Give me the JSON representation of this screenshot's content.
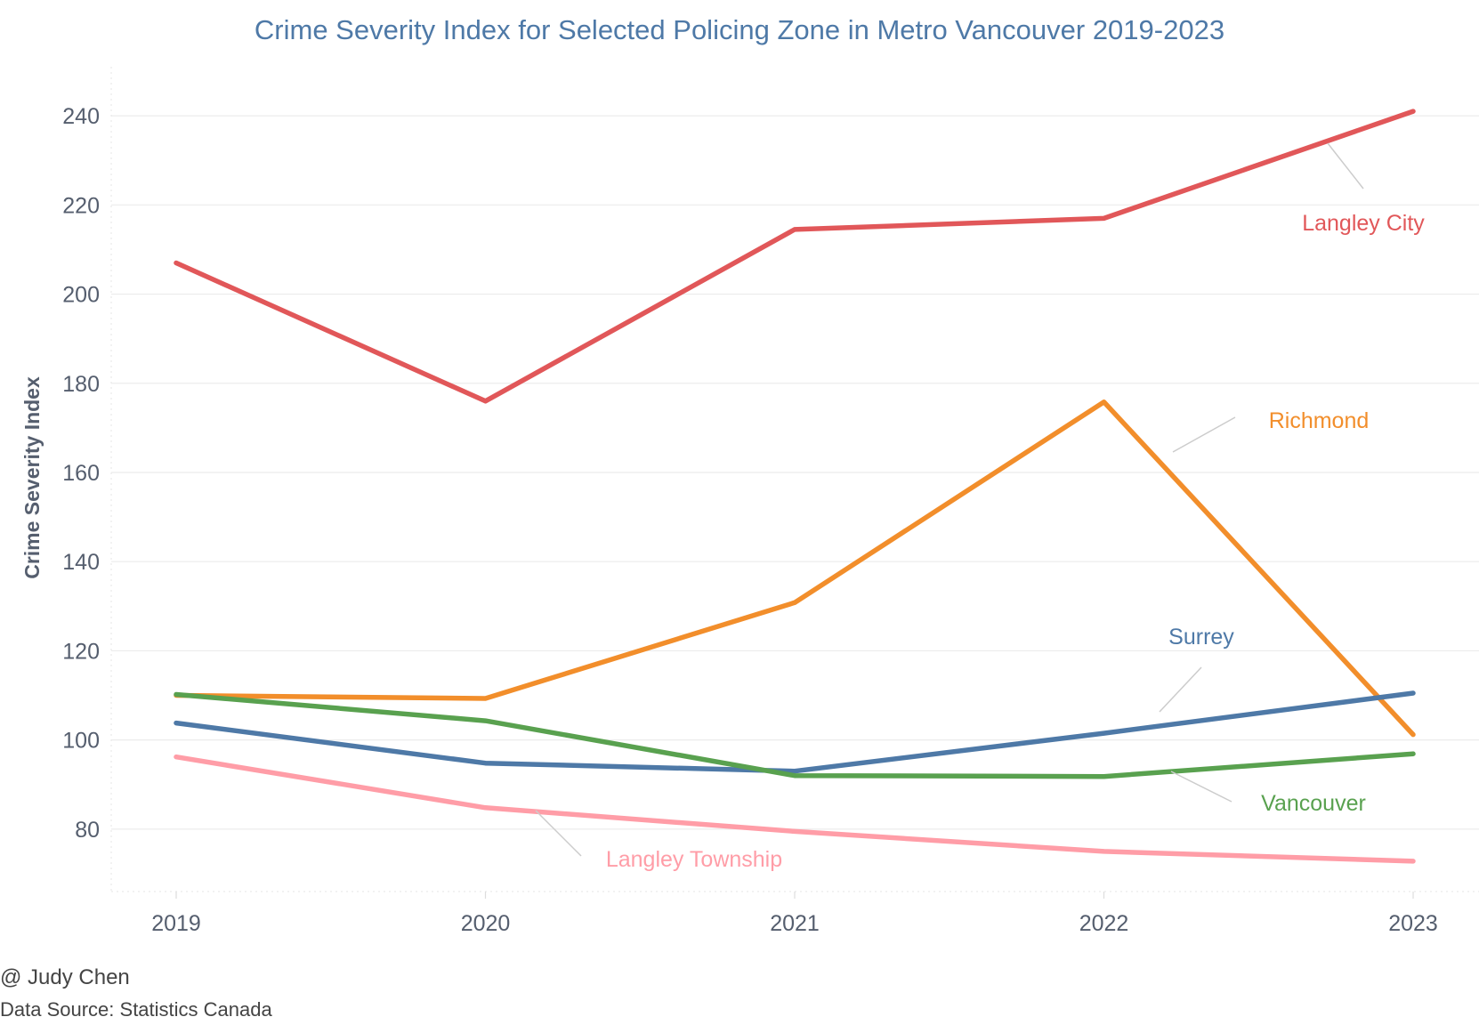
{
  "credits": {
    "author": "@ Judy Chen",
    "source": "Data Source: Statistics Canada"
  },
  "chart_data": {
    "type": "line",
    "title": "Crime Severity Index for Selected Policing Zone in Metro Vancouver 2019-2023",
    "xlabel": "",
    "ylabel": "Crime Severity Index",
    "x": [
      "2019",
      "2020",
      "2021",
      "2022",
      "2023"
    ],
    "yticks": [
      80,
      100,
      120,
      140,
      160,
      180,
      200,
      220,
      240
    ],
    "ylim": [
      66,
      251
    ],
    "grid": true,
    "legend": "direct labels",
    "series": [
      {
        "name": "Langley City",
        "color": "#e15759",
        "values": [
          207,
          176,
          214.5,
          217,
          241
        ]
      },
      {
        "name": "Richmond",
        "color": "#f28e2b",
        "values": [
          110,
          109.3,
          130.8,
          175.8,
          101.2
        ]
      },
      {
        "name": "Surrey",
        "color": "#4e79a7",
        "values": [
          103.8,
          94.8,
          93,
          101.5,
          110.5
        ]
      },
      {
        "name": "Vancouver",
        "color": "#59a14f",
        "values": [
          110.2,
          104.3,
          92,
          91.8,
          96.9
        ]
      },
      {
        "name": "Langley Township",
        "color": "#ff9da7",
        "values": [
          96.2,
          84.8,
          79.5,
          75,
          72.8
        ]
      }
    ]
  }
}
